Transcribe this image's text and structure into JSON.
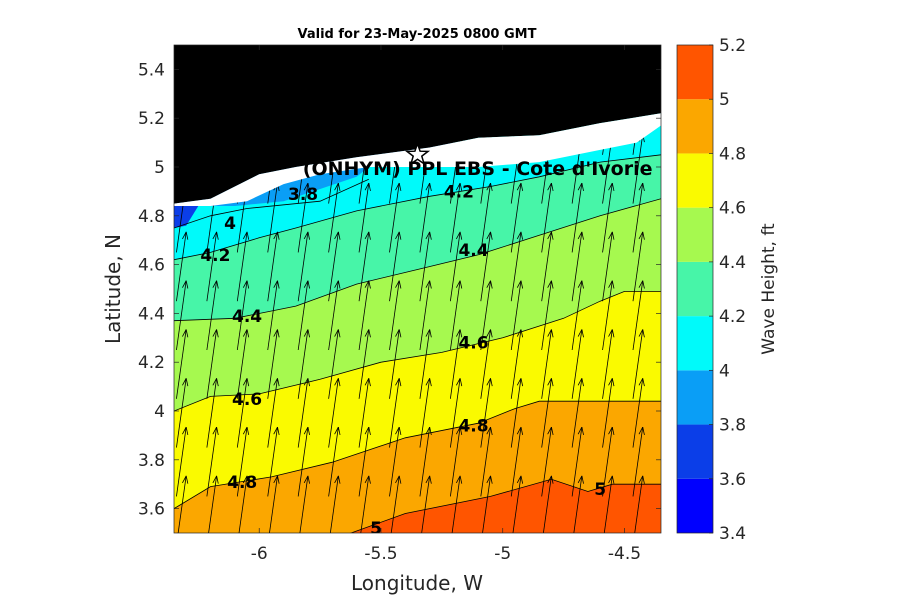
{
  "chart_data": {
    "type": "heatmap",
    "title": "Valid for 23-May-2025 0800 GMT",
    "xlabel": "Longitude, W",
    "ylabel": "Latitude, N",
    "xlim": [
      -6.35,
      -4.35
    ],
    "ylim": [
      3.5,
      5.5
    ],
    "xticks": [
      -6,
      -5.5,
      -5,
      -4.5
    ],
    "yticks": [
      3.6,
      3.8,
      4,
      4.2,
      4.4,
      4.6,
      4.8,
      5,
      5.2,
      5.4
    ],
    "site_label": "(ONHYM) PPL EBS - Cote d'Ivorie",
    "site_marker": {
      "x": -5.35,
      "y": 5.05
    },
    "land_color": "#000000",
    "colorbar": {
      "label": "Wave Height, ft",
      "range": [
        3.4,
        5.2
      ],
      "ticks": [
        3.4,
        3.6,
        3.8,
        4,
        4.2,
        4.4,
        4.6,
        4.8,
        5,
        5.2
      ],
      "levels": [
        {
          "from": 3.4,
          "to": 3.6,
          "color": "#0000ff"
        },
        {
          "from": 3.6,
          "to": 3.8,
          "color": "#0b3ee8"
        },
        {
          "from": 3.8,
          "to": 4.0,
          "color": "#0a9ef6"
        },
        {
          "from": 4.0,
          "to": 4.2,
          "color": "#00fafa"
        },
        {
          "from": 4.2,
          "to": 4.4,
          "color": "#47f5a8"
        },
        {
          "from": 4.4,
          "to": 4.6,
          "color": "#a6f94f"
        },
        {
          "from": 4.6,
          "to": 4.8,
          "color": "#fafa00"
        },
        {
          "from": 4.8,
          "to": 5.0,
          "color": "#fba700"
        },
        {
          "from": 5.0,
          "to": 5.2,
          "color": "#ff5500"
        }
      ]
    },
    "contours": [
      {
        "level": 5.0,
        "points": [
          [
            -6.35,
            3.47
          ],
          [
            -5.65,
            3.49
          ],
          [
            -5.4,
            3.58
          ],
          [
            -5.05,
            3.65
          ],
          [
            -4.8,
            3.72
          ],
          [
            -4.65,
            3.67
          ],
          [
            -4.55,
            3.7
          ],
          [
            -4.35,
            3.7
          ]
        ]
      },
      {
        "level": 4.8,
        "points": [
          [
            -6.35,
            3.6
          ],
          [
            -6.2,
            3.69
          ],
          [
            -5.95,
            3.73
          ],
          [
            -5.7,
            3.79
          ],
          [
            -5.4,
            3.89
          ],
          [
            -5.1,
            3.95
          ],
          [
            -4.95,
            4.01
          ],
          [
            -4.85,
            4.04
          ],
          [
            -4.35,
            4.04
          ]
        ]
      },
      {
        "level": 4.6,
        "points": [
          [
            -6.35,
            4.0
          ],
          [
            -6.2,
            4.06
          ],
          [
            -6.0,
            4.07
          ],
          [
            -5.75,
            4.13
          ],
          [
            -5.5,
            4.2
          ],
          [
            -5.25,
            4.24
          ],
          [
            -5.0,
            4.3
          ],
          [
            -4.75,
            4.38
          ],
          [
            -4.6,
            4.45
          ],
          [
            -4.5,
            4.49
          ],
          [
            -4.35,
            4.49
          ]
        ]
      },
      {
        "level": 4.4,
        "points": [
          [
            -6.35,
            4.37
          ],
          [
            -6.1,
            4.38
          ],
          [
            -5.85,
            4.43
          ],
          [
            -5.6,
            4.52
          ],
          [
            -5.35,
            4.58
          ],
          [
            -5.1,
            4.64
          ],
          [
            -4.85,
            4.72
          ],
          [
            -4.6,
            4.8
          ],
          [
            -4.35,
            4.87
          ]
        ]
      },
      {
        "level": 4.2,
        "points": [
          [
            -6.35,
            4.62
          ],
          [
            -6.2,
            4.65
          ],
          [
            -6.0,
            4.71
          ],
          [
            -5.85,
            4.75
          ],
          [
            -5.6,
            4.82
          ],
          [
            -5.3,
            4.88
          ],
          [
            -5.05,
            4.92
          ],
          [
            -4.85,
            4.96
          ],
          [
            -4.6,
            5.02
          ],
          [
            -4.35,
            5.05
          ]
        ]
      },
      {
        "level": 4.0,
        "points": [
          [
            -6.35,
            4.75
          ],
          [
            -6.2,
            4.8
          ],
          [
            -6.05,
            4.83
          ]
        ]
      },
      {
        "level": 3.8,
        "points": [
          [
            -6.05,
            4.83
          ],
          [
            -5.75,
            4.86
          ],
          [
            -5.55,
            4.95
          ]
        ]
      }
    ],
    "contour_labels": [
      {
        "text": "3.8",
        "x": -5.82,
        "y": 4.89
      },
      {
        "text": "4",
        "x": -6.12,
        "y": 4.77
      },
      {
        "text": "4.2",
        "x": -6.18,
        "y": 4.64
      },
      {
        "text": "4.2",
        "x": -5.18,
        "y": 4.9
      },
      {
        "text": "4.4",
        "x": -6.05,
        "y": 4.39
      },
      {
        "text": "4.4",
        "x": -5.12,
        "y": 4.66
      },
      {
        "text": "4.6",
        "x": -6.05,
        "y": 4.05
      },
      {
        "text": "4.6",
        "x": -5.12,
        "y": 4.28
      },
      {
        "text": "4.8",
        "x": -6.07,
        "y": 3.71
      },
      {
        "text": "4.8",
        "x": -5.12,
        "y": 3.94
      },
      {
        "text": "5",
        "x": -5.52,
        "y": 3.52
      },
      {
        "text": "5",
        "x": -4.6,
        "y": 3.68
      }
    ],
    "wave_direction": {
      "mean_bearing_deg": 8,
      "grid_step_lon": 0.125,
      "grid_step_lat": 0.2
    }
  }
}
